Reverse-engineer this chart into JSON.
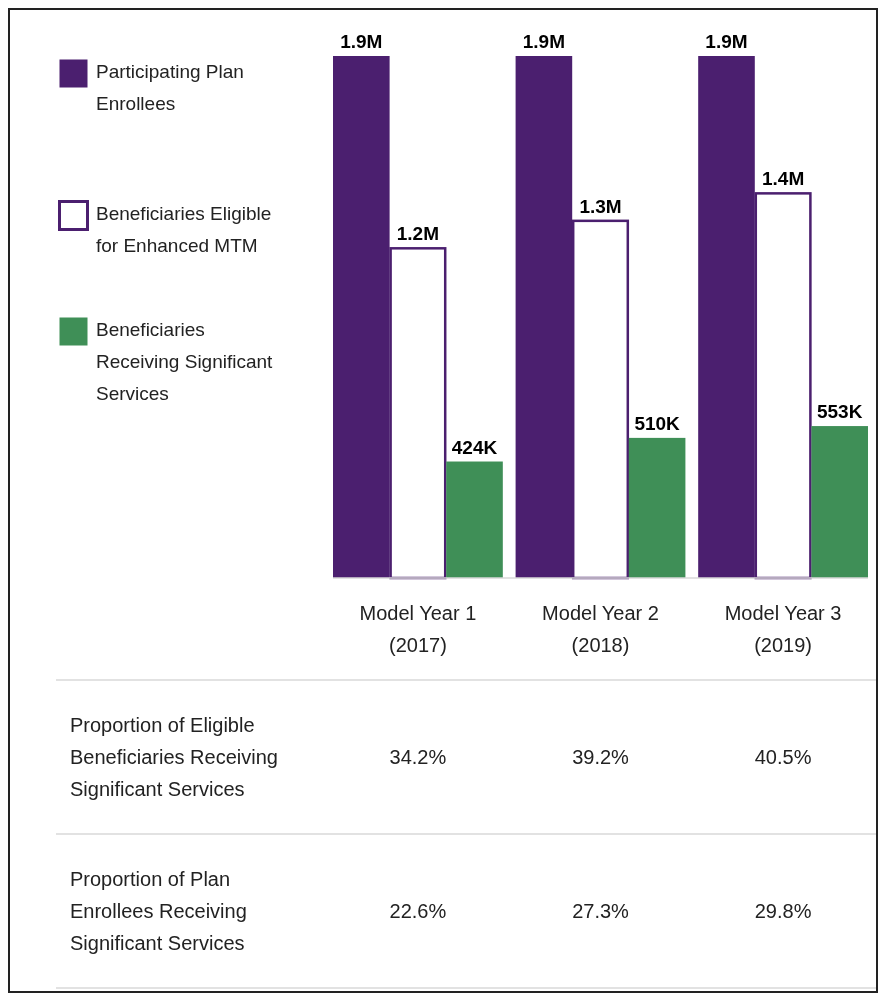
{
  "chart_data": [
    {
      "type": "bar",
      "categories": [
        "Model Year 1 (2017)",
        "Model Year 2 (2018)",
        "Model Year 3 (2019)"
      ],
      "series": [
        {
          "name": "Participating Plan Enrollees",
          "color": "#4b1f6f",
          "values": [
            1900000,
            1900000,
            1900000
          ],
          "value_labels": [
            "1.9M",
            "1.9M",
            "1.9M"
          ]
        },
        {
          "name": "Beneficiaries Eligible for Enhanced MTM",
          "color": "#ffffff",
          "values": [
            1200000,
            1300000,
            1400000
          ],
          "value_labels": [
            "1.2M",
            "1.3M",
            "1.4M"
          ]
        },
        {
          "name": "Beneficiaries Receiving Significant Services",
          "color": "#3f8f57",
          "values": [
            424000,
            510000,
            553000
          ],
          "value_labels": [
            "424K",
            "510K",
            "553K"
          ]
        }
      ],
      "legend": "left"
    },
    {
      "type": "other",
      "y_categories": [
        "Proportion of Eligible Beneficiaries Receiving Significant Services",
        "Proportion of Plan Enrollees Receiving Significant Services"
      ],
      "cell_labels": [
        [
          "34.2%",
          "39.2%",
          "40.5%"
        ],
        [
          "22.6%",
          "27.3%",
          "29.8%"
        ]
      ]
    }
  ]
}
